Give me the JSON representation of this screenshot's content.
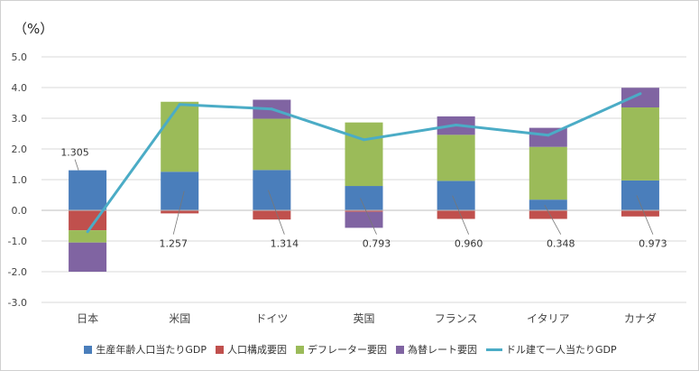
{
  "chart_data": {
    "type": "bar",
    "unit_label": "（%）",
    "categories": [
      "日本",
      "米国",
      "ドイツ",
      "英国",
      "フランス",
      "イタリア",
      "カナダ"
    ],
    "ylim": [
      -3.0,
      5.0
    ],
    "yticks": [
      "5.0",
      "4.0",
      "3.0",
      "2.0",
      "1.0",
      "0.0",
      "-1.0",
      "-2.0",
      "-3.0"
    ],
    "stacked": true,
    "series": [
      {
        "name": "生産年齢人口当たりGDP",
        "color": "#4a7ebb",
        "values": [
          1.305,
          1.257,
          1.314,
          0.793,
          0.96,
          0.348,
          0.973
        ]
      },
      {
        "name": "人口構成要因",
        "color": "#c0504d",
        "values": [
          -0.65,
          -0.1,
          -0.3,
          -0.05,
          -0.28,
          -0.28,
          -0.2
        ]
      },
      {
        "name": "デフレーター要因",
        "color": "#9bbb59",
        "values": [
          -0.4,
          2.28,
          1.67,
          2.07,
          1.5,
          1.72,
          2.38
        ]
      },
      {
        "name": "為替レート要因",
        "color": "#8064a2",
        "values": [
          -0.95,
          0.0,
          0.62,
          -0.52,
          0.6,
          0.62,
          0.64
        ]
      }
    ],
    "line_series": {
      "name": "ドル建て一人当たりGDP",
      "color": "#4bacc6",
      "values": [
        -0.7,
        3.45,
        3.3,
        2.3,
        2.78,
        2.45,
        3.8
      ]
    },
    "data_labels": [
      "1.305",
      "1.257",
      "1.314",
      "0.793",
      "0.960",
      "0.348",
      "0.973"
    ],
    "grid": true,
    "legend_position": "bottom"
  }
}
